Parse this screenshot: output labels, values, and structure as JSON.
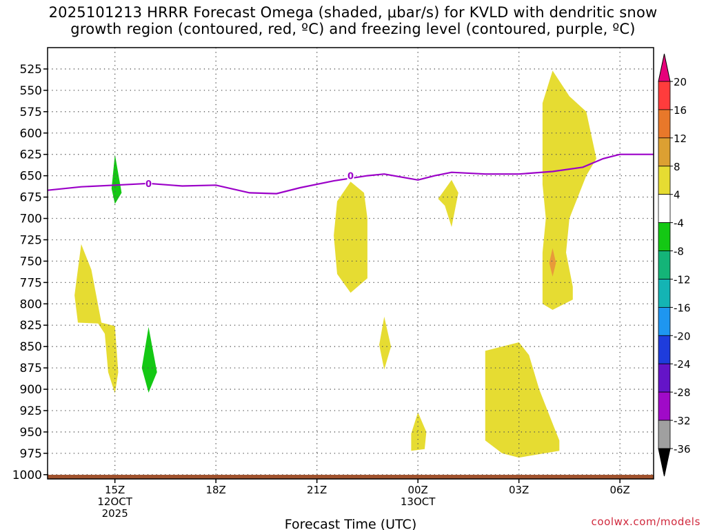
{
  "chart_data": {
    "type": "contour",
    "title_line1": "2025101213 HRRR Forecast Omega (shaded, μbar/s) for KVLD with dendritic snow",
    "title_line2": "growth region (contoured, red, ºC) and freezing level (contoured, purple, ºC)",
    "xlabel": "Forecast Time (UTC)",
    "x_range_hours": [
      13,
      31
    ],
    "x_ticks": [
      {
        "hour": 15,
        "label": "15Z",
        "sub1": "12OCT",
        "sub2": "2025"
      },
      {
        "hour": 18,
        "label": "18Z",
        "sub1": "",
        "sub2": ""
      },
      {
        "hour": 21,
        "label": "21Z",
        "sub1": "",
        "sub2": ""
      },
      {
        "hour": 24,
        "label": "00Z",
        "sub1": "13OCT",
        "sub2": ""
      },
      {
        "hour": 27,
        "label": "03Z",
        "sub1": "",
        "sub2": ""
      },
      {
        "hour": 30,
        "label": "06Z",
        "sub1": "",
        "sub2": ""
      }
    ],
    "y_range_hpa": [
      500,
      1005
    ],
    "y_ticks": [
      525,
      550,
      575,
      600,
      625,
      650,
      675,
      700,
      725,
      750,
      775,
      800,
      825,
      850,
      875,
      900,
      925,
      950,
      975,
      1000
    ],
    "colorbar": {
      "labels": [
        "20",
        "16",
        "12",
        "8",
        "4",
        "-4",
        "-8",
        "-12",
        "-16",
        "-20",
        "-24",
        "-28",
        "-32",
        "-36"
      ],
      "colors": [
        "#ff3c3c",
        "#e8782a",
        "#dca032",
        "#e6dc32",
        "#ffffff",
        "#14c814",
        "#14b478",
        "#14b4b4",
        "#1e96f0",
        "#1e3cdc",
        "#6414c8",
        "#a00ac8",
        "#a0a0a0"
      ],
      "top_arrow_color": "#e6007a",
      "bottom_arrow_color": "#000000"
    },
    "freezing_level": {
      "label": "0",
      "color": "#9b00c8",
      "points": [
        [
          13.0,
          667
        ],
        [
          14.0,
          663
        ],
        [
          15.0,
          661
        ],
        [
          16.0,
          659
        ],
        [
          17.0,
          662
        ],
        [
          18.0,
          661
        ],
        [
          19.0,
          670
        ],
        [
          19.8,
          671
        ],
        [
          20.5,
          664
        ],
        [
          21.5,
          656
        ],
        [
          22.5,
          650
        ],
        [
          23.0,
          648
        ],
        [
          24.0,
          655
        ],
        [
          24.5,
          650
        ],
        [
          25.0,
          646
        ],
        [
          26.0,
          648
        ],
        [
          27.0,
          648
        ],
        [
          28.0,
          645
        ],
        [
          28.9,
          640
        ],
        [
          29.5,
          630
        ],
        [
          30.0,
          625
        ],
        [
          31.0,
          625
        ]
      ],
      "label_points": [
        [
          16.0,
          659
        ],
        [
          22.0,
          650
        ]
      ]
    },
    "omega_regions": [
      {
        "value": 4,
        "color": "#e6dc32",
        "polygon": [
          [
            14.0,
            730
          ],
          [
            14.3,
            760
          ],
          [
            14.6,
            822
          ],
          [
            15.0,
            826
          ],
          [
            15.1,
            880
          ],
          [
            15.0,
            905
          ],
          [
            14.8,
            880
          ],
          [
            14.7,
            835
          ],
          [
            14.5,
            823
          ],
          [
            13.9,
            822
          ],
          [
            13.8,
            790
          ]
        ]
      },
      {
        "value": -4,
        "color": "#14c814",
        "polygon": [
          [
            15.0,
            625
          ],
          [
            15.2,
            670
          ],
          [
            15.0,
            683
          ],
          [
            14.9,
            665
          ]
        ]
      },
      {
        "value": -4,
        "color": "#14c814",
        "polygon": [
          [
            16.0,
            827
          ],
          [
            16.25,
            880
          ],
          [
            16.0,
            904
          ],
          [
            15.8,
            875
          ]
        ]
      },
      {
        "value": 4,
        "color": "#e6dc32",
        "polygon": [
          [
            22.0,
            657
          ],
          [
            22.4,
            670
          ],
          [
            22.5,
            700
          ],
          [
            22.5,
            770
          ],
          [
            22.0,
            787
          ],
          [
            21.6,
            765
          ],
          [
            21.5,
            720
          ],
          [
            21.6,
            680
          ]
        ]
      },
      {
        "value": 4,
        "color": "#e6dc32",
        "polygon": [
          [
            23.0,
            815
          ],
          [
            23.2,
            850
          ],
          [
            23.0,
            877
          ],
          [
            22.85,
            848
          ]
        ]
      },
      {
        "value": 4,
        "color": "#e6dc32",
        "polygon": [
          [
            24.6,
            677
          ],
          [
            25.0,
            655
          ],
          [
            25.2,
            670
          ],
          [
            25.0,
            710
          ],
          [
            24.8,
            685
          ]
        ]
      },
      {
        "value": 4,
        "color": "#e6dc32",
        "polygon": [
          [
            24.0,
            927
          ],
          [
            24.25,
            950
          ],
          [
            24.2,
            970
          ],
          [
            23.8,
            972
          ],
          [
            23.8,
            952
          ]
        ]
      },
      {
        "value": 4,
        "color": "#e6dc32",
        "polygon": [
          [
            26.0,
            855
          ],
          [
            27.0,
            845
          ],
          [
            27.3,
            860
          ],
          [
            27.6,
            900
          ],
          [
            28.0,
            940
          ],
          [
            28.2,
            960
          ],
          [
            28.2,
            972
          ],
          [
            27.0,
            980
          ],
          [
            26.5,
            975
          ],
          [
            26.0,
            960
          ]
        ]
      },
      {
        "value": 4,
        "color": "#e6dc32",
        "polygon": [
          [
            28.0,
            527
          ],
          [
            28.5,
            557
          ],
          [
            29.0,
            575
          ],
          [
            29.3,
            630
          ],
          [
            29.0,
            650
          ],
          [
            28.5,
            700
          ],
          [
            28.4,
            740
          ],
          [
            28.6,
            780
          ],
          [
            28.6,
            795
          ],
          [
            28.0,
            807
          ],
          [
            27.7,
            800
          ],
          [
            27.7,
            740
          ],
          [
            27.8,
            700
          ],
          [
            27.7,
            660
          ],
          [
            27.7,
            600
          ],
          [
            27.7,
            565
          ]
        ]
      },
      {
        "value": 8,
        "color": "#e89a3a",
        "polygon": [
          [
            28.0,
            735
          ],
          [
            28.1,
            752
          ],
          [
            28.0,
            768
          ],
          [
            27.9,
            752
          ]
        ]
      }
    ],
    "surface_color": "#a0522d",
    "source": "coolwx.com/models"
  }
}
